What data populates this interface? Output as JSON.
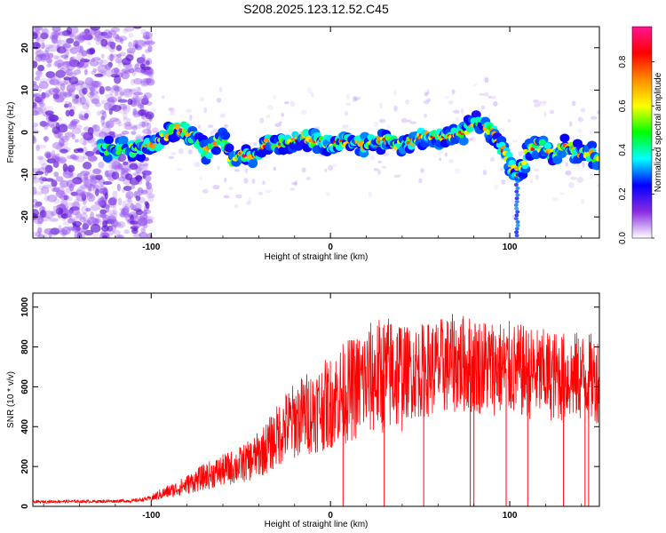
{
  "figure": {
    "title": "S208.2025.123.12.52.C45"
  },
  "chart_data": [
    {
      "type": "heatmap",
      "title": "S208.2025.123.12.52.C45",
      "xlabel": "Height of straight line (km)",
      "ylabel": "Frequency (Hz)",
      "xlim": [
        -166,
        150
      ],
      "ylim": [
        -25,
        25
      ],
      "xticks": [
        -100,
        0,
        100
      ],
      "yticks": [
        -20,
        -10,
        0,
        10,
        20
      ],
      "colorbar": {
        "label": "Normalized spectral amplitude",
        "range": [
          0,
          0.96
        ],
        "ticks": [
          "0.0",
          "0.2",
          "0.4",
          "0.6",
          "0.8"
        ],
        "colormap": [
          "#ffffff",
          "#8a2be2",
          "#0000ff",
          "#00ffff",
          "#00ff00",
          "#ffff00",
          "#ff8c00",
          "#ff0000",
          "#ff1493"
        ]
      },
      "ridge": {
        "x": [
          -125,
          -110,
          -100,
          -95,
          -90,
          -85,
          -80,
          -75,
          -70,
          -65,
          -60,
          -55,
          -50,
          -45,
          -40,
          -35,
          -30,
          -25,
          -20,
          -15,
          -10,
          -5,
          0,
          10,
          20,
          30,
          40,
          50,
          60,
          70,
          80,
          85,
          90,
          95,
          100,
          105,
          110,
          115,
          120,
          125,
          130,
          135,
          140,
          145,
          150
        ],
        "y": [
          -4,
          -4,
          -3,
          -2,
          0,
          1,
          0,
          -1,
          -5,
          -3,
          -1,
          -7,
          -5,
          -6,
          -5,
          -2,
          -3,
          -2,
          -2,
          -1,
          -2,
          -2,
          -3,
          -2,
          -3,
          -2,
          -3,
          -1,
          -1,
          -1,
          2,
          2,
          0,
          -3,
          -8,
          -10,
          -5,
          -3,
          -4,
          -5,
          -3,
          -4,
          -5,
          -5,
          -7
        ]
      }
    },
    {
      "type": "line",
      "xlabel": "Height of straight line (km)",
      "ylabel": "SNR (10 * v/v)",
      "xlim": [
        -166,
        150
      ],
      "ylim": [
        0,
        1070
      ],
      "xticks": [
        -100,
        0,
        100
      ],
      "yticks": [
        0,
        200,
        400,
        600,
        800,
        1000
      ],
      "grid": false,
      "series": [
        {
          "color": "#ff0000",
          "x": [
            -166,
            -150,
            -130,
            -110,
            -100,
            -95,
            -90,
            -85,
            -80,
            -75,
            -70,
            -65,
            -60,
            -55,
            -50,
            -45,
            -40,
            -35,
            -30,
            -25,
            -20,
            -15,
            -10,
            -5,
            0,
            5,
            10,
            15,
            20,
            25,
            30,
            40,
            50,
            60,
            70,
            80,
            90,
            100,
            110,
            120,
            130,
            140,
            150
          ],
          "y": [
            22,
            25,
            25,
            28,
            40,
            60,
            75,
            90,
            110,
            130,
            150,
            165,
            180,
            195,
            210,
            230,
            260,
            300,
            350,
            400,
            430,
            460,
            480,
            500,
            520,
            560,
            580,
            600,
            630,
            650,
            660,
            670,
            680,
            700,
            720,
            710,
            700,
            690,
            670,
            660,
            650,
            650,
            640
          ]
        }
      ]
    }
  ]
}
